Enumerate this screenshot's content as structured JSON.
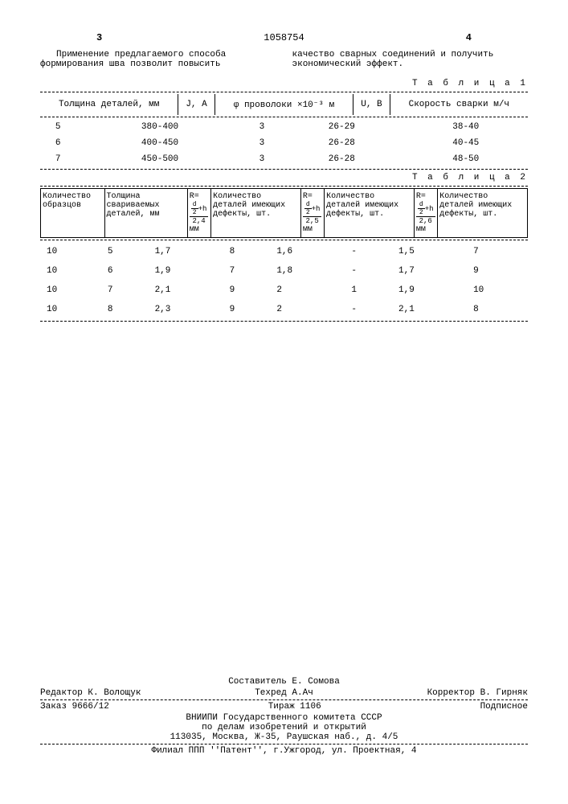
{
  "page_left_num": "3",
  "doc_number": "1058754",
  "page_right_num": "4",
  "intro_left": "Применение предлагаемого способа формирования шва позволит повысить",
  "intro_right": "качество сварных соединений и получить экономический эффект.",
  "table1_label": "Т а б л и ц а 1",
  "table1": {
    "headers": [
      "Толщина деталей, мм",
      "J, A",
      "φ проволоки ×10⁻³ м",
      "U, B",
      "Скорость сварки м/ч"
    ],
    "rows": [
      [
        "5",
        "380-400",
        "3",
        "26-29",
        "38-40"
      ],
      [
        "6",
        "400-450",
        "3",
        "26-28",
        "40-45"
      ],
      [
        "7",
        "450-500",
        "3",
        "26-28",
        "48-50"
      ]
    ]
  },
  "table2_label": "Т а б л и ц а 2",
  "table2": {
    "headers": [
      "Количество образцов",
      "Толщина свариваемых деталей, мм",
      "R = (d/2+h)/2,4 мм",
      "Количество деталей имеющих дефекты, шт.",
      "R = (d/2+h)/2,5, мм",
      "Количество деталей имеющих дефекты, шт.",
      "R = (d/2+h)/2,6 мм",
      "Количество деталей имеющих дефекты, шт."
    ],
    "r_labels": [
      "2,4",
      "2,5",
      "2,6"
    ],
    "rows": [
      [
        "10",
        "5",
        "1,7",
        "8",
        "1,6",
        "-",
        "1,5",
        "7"
      ],
      [
        "10",
        "6",
        "1,9",
        "7",
        "1,8",
        "-",
        "1,7",
        "9"
      ],
      [
        "10",
        "7",
        "2,1",
        "9",
        "2",
        "1",
        "1,9",
        "10"
      ],
      [
        "10",
        "8",
        "2,3",
        "9",
        "2",
        "-",
        "2,1",
        "8"
      ]
    ]
  },
  "footer": {
    "compiler": "Составитель Е. Сомова",
    "editor": "Редактор К. Волощук",
    "techred": "Техред А.Ач",
    "corrector": "Корректор В. Гирняк",
    "order": "Заказ 9666/12",
    "circulation": "Тираж 1106",
    "subscription": "Подписное",
    "org1": "ВНИИПИ Государственного комитета СССР",
    "org2": "по делам изобретений и открытий",
    "address1": "113035, Москва, Ж-35, Раушская наб., д. 4/5",
    "branch": "Филиал ППП ''Патент'', г.Ужгород, ул. Проектная, 4"
  }
}
